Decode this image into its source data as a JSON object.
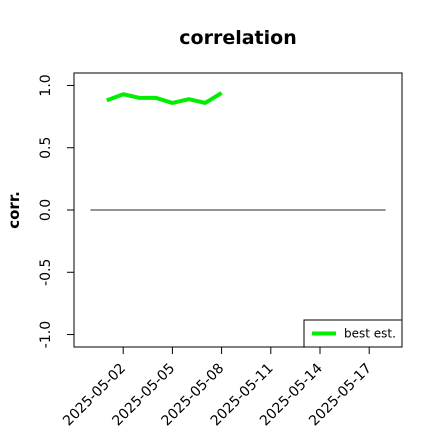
{
  "chart_data": {
    "type": "line",
    "title": "correlation",
    "xlabel": "",
    "ylabel": "corr.",
    "ylim": [
      -1.1,
      1.1
    ],
    "xlim": [
      "2025-04-29",
      "2025-05-19"
    ],
    "y_ticks": [
      {
        "value": -1.0,
        "label": "-1.0"
      },
      {
        "value": -0.5,
        "label": "-0.5"
      },
      {
        "value": 0.0,
        "label": "0.0"
      },
      {
        "value": 0.5,
        "label": "0.5"
      },
      {
        "value": 1.0,
        "label": "1.0"
      }
    ],
    "x_ticks": [
      {
        "value": "2025-05-02",
        "label": "2025-05-02",
        "color": "#000000"
      },
      {
        "value": "2025-05-05",
        "label": "2025-05-05",
        "color": "#000000"
      },
      {
        "value": "2025-05-08",
        "label": "2025-05-08",
        "color": "#228B22"
      },
      {
        "value": "2025-05-11",
        "label": "2025-05-11",
        "color": "#000000"
      },
      {
        "value": "2025-05-14",
        "label": "2025-05-14",
        "color": "#000000"
      },
      {
        "value": "2025-05-17",
        "label": "2025-05-17",
        "color": "#000000"
      }
    ],
    "grid": false,
    "legend": {
      "position": "bottom-right"
    },
    "reference_line": {
      "y": 0.0,
      "from": "2025-04-30",
      "to": "2025-05-18",
      "color": "#555555"
    },
    "series": [
      {
        "name": "best est.",
        "color": "#00EE00",
        "x": [
          "2025-05-01",
          "2025-05-02",
          "2025-05-03",
          "2025-05-04",
          "2025-05-05",
          "2025-05-06",
          "2025-05-07",
          "2025-05-08"
        ],
        "y": [
          0.88,
          0.93,
          0.9,
          0.9,
          0.86,
          0.89,
          0.86,
          0.94
        ]
      }
    ]
  }
}
